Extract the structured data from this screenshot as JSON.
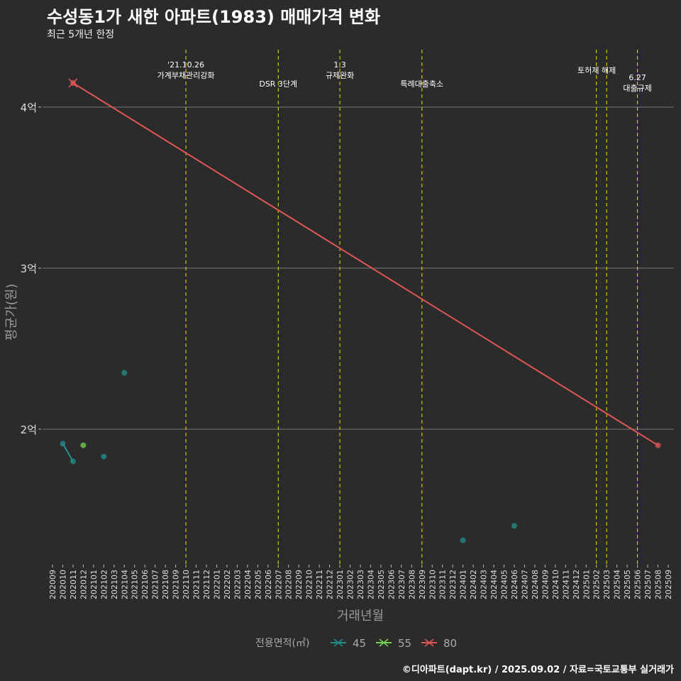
{
  "title": "수성동1가 새한 아파트(1983) 매매가격 변화",
  "subtitle": "최근 5개년 한정",
  "caption": "©디아파트(dapt.kr) / 2025.09.02 / 자료=국토교통부 실거래가",
  "chart_data": {
    "type": "line",
    "xlabel": "거래년월",
    "ylabel": "평균가(원)",
    "x": [
      "202009",
      "202010",
      "202011",
      "202012",
      "202101",
      "202102",
      "202103",
      "202104",
      "202105",
      "202106",
      "202107",
      "202108",
      "202109",
      "202110",
      "202111",
      "202112",
      "202201",
      "202202",
      "202203",
      "202204",
      "202205",
      "202206",
      "202207",
      "202208",
      "202209",
      "202210",
      "202211",
      "202212",
      "202301",
      "202302",
      "202303",
      "202304",
      "202305",
      "202306",
      "202307",
      "202308",
      "202309",
      "202310",
      "202311",
      "202312",
      "202401",
      "202402",
      "202403",
      "202404",
      "202405",
      "202406",
      "202407",
      "202408",
      "202409",
      "202410",
      "202411",
      "202412",
      "202501",
      "202502",
      "202503",
      "202504",
      "202505",
      "202506",
      "202507",
      "202508",
      "202509"
    ],
    "ylim": [
      1.15,
      4.35
    ],
    "yticks": [
      {
        "value": 2,
        "label": "2억"
      },
      {
        "value": 3,
        "label": "3억"
      },
      {
        "value": 4,
        "label": "4억"
      }
    ],
    "grid": true,
    "legend": {
      "title": "전용면적(㎡)",
      "placement": "bottom"
    },
    "series": [
      {
        "name": "45",
        "color": "#22908c",
        "points": [
          [
            "202010",
            1.91
          ],
          [
            "202011",
            1.8
          ],
          [
            "202102",
            1.83
          ],
          [
            "202104",
            2.35
          ],
          [
            "202401",
            1.31
          ],
          [
            "202406",
            1.4
          ]
        ]
      },
      {
        "name": "55",
        "color": "#7ad151",
        "points": [
          [
            "202012",
            1.9
          ]
        ]
      },
      {
        "name": "80",
        "color": "#e05555",
        "points": [
          [
            "202011",
            4.15
          ],
          [
            "202508",
            1.9
          ]
        ]
      }
    ],
    "annotations": [
      {
        "x": "202110",
        "lines": [
          "'21.10.26",
          "가계부채관리강화"
        ]
      },
      {
        "x": "202207",
        "lines": [
          "DSR 3단계"
        ]
      },
      {
        "x": "202301",
        "lines": [
          "1.3",
          "규제완화"
        ]
      },
      {
        "x": "202309",
        "lines": [
          "특례대출축소"
        ]
      },
      {
        "x": "202502",
        "lines": []
      },
      {
        "x": "202503",
        "lines": [
          "토허제 해제"
        ]
      },
      {
        "x": "202506",
        "lines": [
          "6.27",
          "대출규제"
        ]
      }
    ]
  }
}
